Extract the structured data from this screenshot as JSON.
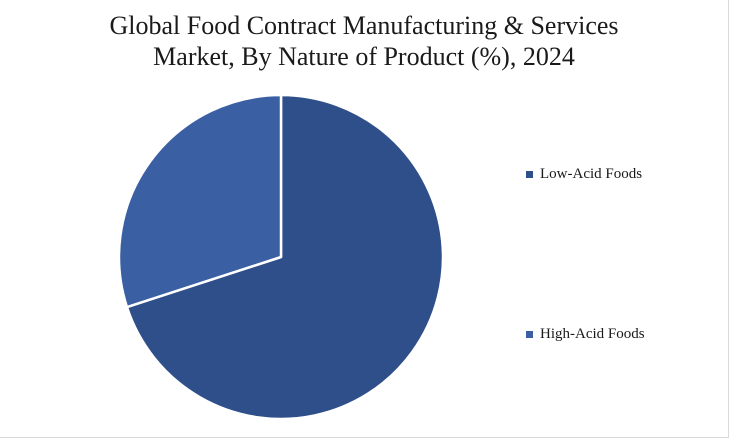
{
  "chart_data": {
    "type": "pie",
    "title_lines": [
      "Global Food Contract Manufacturing & Services",
      "Market, By Nature of Product (%), 2024"
    ],
    "categories": [
      "Low-Acid Foods",
      "High-Acid Foods"
    ],
    "values": [
      70,
      30
    ],
    "colors": [
      "#2f4f8a",
      "#3a5fa3"
    ],
    "slice_border_color": "#ffffff",
    "legend_placement": "right"
  }
}
